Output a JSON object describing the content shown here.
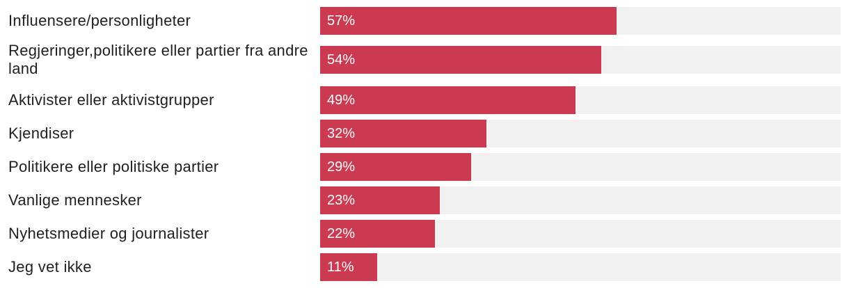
{
  "chart_data": {
    "type": "bar",
    "orientation": "horizontal",
    "categories": [
      "Influensere/personligheter",
      "Regjeringer,politikere eller partier fra andre land",
      "Aktivister eller aktivistgrupper",
      "Kjendiser",
      "Politikere eller politiske partier",
      "Vanlige mennesker",
      "Nyhetsmedier og journalister",
      "Jeg vet ikke"
    ],
    "values": [
      57,
      54,
      49,
      32,
      29,
      23,
      22,
      11
    ],
    "value_labels": [
      "57%",
      "54%",
      "49%",
      "32%",
      "29%",
      "23%",
      "22%",
      "11%"
    ],
    "xlim": [
      0,
      100
    ],
    "unit": "%",
    "grid": false,
    "legend": "none",
    "colors": {
      "bar": "#cc3a51",
      "track": "#f1f1f1",
      "value_text": "#ffffff",
      "label_text": "#1f1f1f"
    }
  }
}
